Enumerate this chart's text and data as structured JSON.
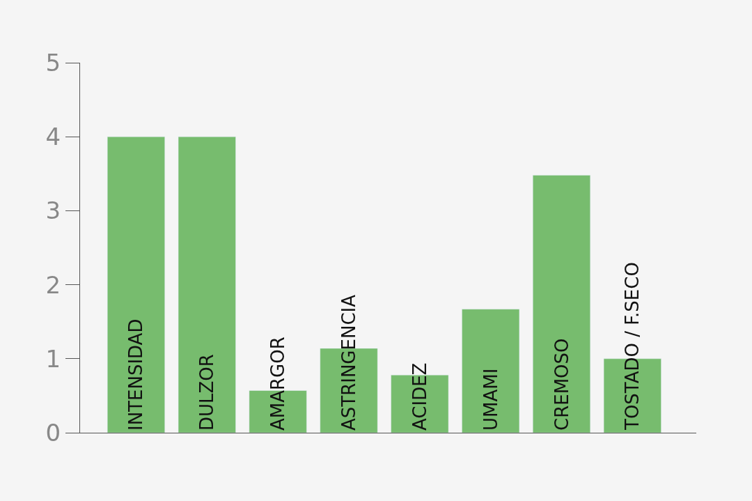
{
  "chart_data": {
    "type": "bar",
    "categories": [
      "INTENSIDAD",
      "DULZOR",
      "AMARGOR",
      "ASTRINGENCIA",
      "ACIDEZ",
      "UMAMI",
      "CREMOSO",
      "TOSTADO / F.SECO"
    ],
    "values": [
      4,
      4,
      0.57,
      1.14,
      0.78,
      1.67,
      3.48,
      1.0
    ],
    "color": "#77bc6e",
    "ylim": [
      0,
      5
    ],
    "yticks": [
      0,
      1,
      2,
      3,
      4,
      5
    ],
    "grid": false,
    "legend": false
  }
}
